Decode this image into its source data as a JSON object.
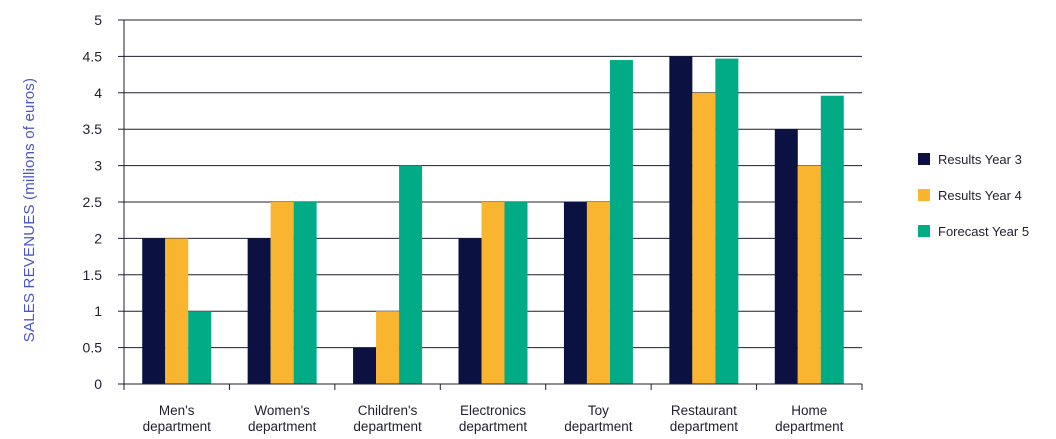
{
  "chart_data": {
    "type": "bar",
    "title": "",
    "xlabel": "",
    "ylabel": "SALES REVENUES (millions of euros)",
    "ylim": [
      0,
      5
    ],
    "yticks": [
      0,
      0.5,
      1,
      1.5,
      2,
      2.5,
      3,
      3.5,
      4,
      4.5,
      5
    ],
    "ytick_labels": [
      "0",
      "0.5",
      "1",
      "1.5",
      "2",
      "2.5",
      "3",
      "3.5",
      "4",
      "4.5",
      "5"
    ],
    "grid": true,
    "legend_position": "right",
    "categories": [
      [
        "Men's",
        "department"
      ],
      [
        "Women's",
        "department"
      ],
      [
        "Children's",
        "department"
      ],
      [
        "Electronics",
        "department"
      ],
      [
        "Toy",
        "department"
      ],
      [
        "Restaurant",
        "department"
      ],
      [
        "Home",
        "department"
      ]
    ],
    "series": [
      {
        "name": "Results Year 3",
        "color": "#0b1140",
        "values": [
          2,
          2,
          0.5,
          2,
          2.5,
          4.5,
          3.5
        ]
      },
      {
        "name": "Results Year 4",
        "color": "#f9b52f",
        "values": [
          2,
          2.5,
          1,
          2.5,
          2.5,
          4,
          3
        ]
      },
      {
        "name": "Forecast Year 5",
        "color": "#00ab86",
        "values": [
          1,
          2.5,
          3,
          2.5,
          4.45,
          4.47,
          3.96
        ]
      }
    ]
  }
}
